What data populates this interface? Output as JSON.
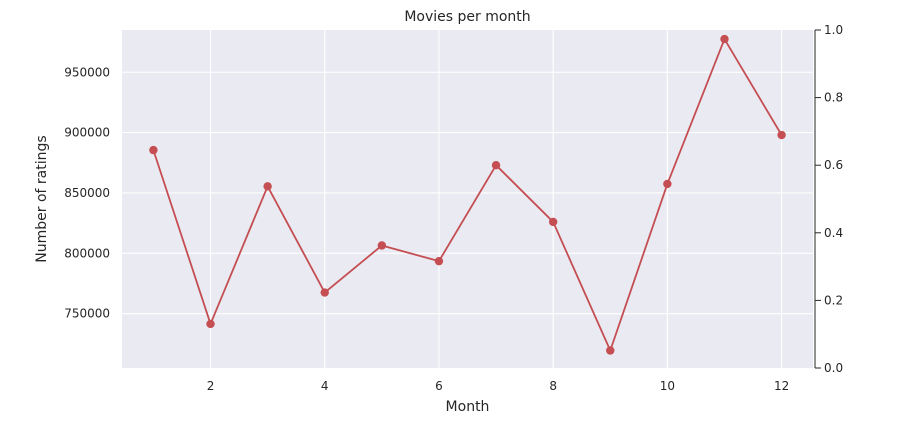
{
  "chart_data": {
    "type": "line",
    "title": "Movies per month",
    "xlabel": "Month",
    "ylabel": "Number of ratings",
    "x": [
      1,
      2,
      3,
      4,
      5,
      6,
      7,
      8,
      9,
      10,
      11,
      12
    ],
    "series": [
      {
        "values": [
          885500,
          741500,
          855500,
          767500,
          806500,
          793500,
          873000,
          826000,
          719500,
          857500,
          977500,
          898000
        ],
        "color": "#c44e52",
        "marker": "circle"
      }
    ],
    "xlim": [
      0.45,
      12.55
    ],
    "ylim": [
      705000,
      985000
    ],
    "xticks": [
      2,
      4,
      6,
      8,
      10,
      12
    ],
    "xtick_labels": [
      "2",
      "4",
      "6",
      "8",
      "10",
      "12"
    ],
    "yticks": [
      750000,
      800000,
      850000,
      900000,
      950000
    ],
    "ytick_labels": [
      "750000",
      "800000",
      "850000",
      "900000",
      "950000"
    ],
    "y2lim": [
      0,
      1
    ],
    "y2ticks": [
      0,
      0.2,
      0.4,
      0.6,
      0.8,
      1.0
    ],
    "y2tick_labels": [
      "0.0",
      "0.2",
      "0.4",
      "0.6",
      "0.8",
      "1.0"
    ],
    "grid": true,
    "background": "#eaeaf2",
    "grid_color": "#ffffff",
    "text_color": "#262626"
  }
}
